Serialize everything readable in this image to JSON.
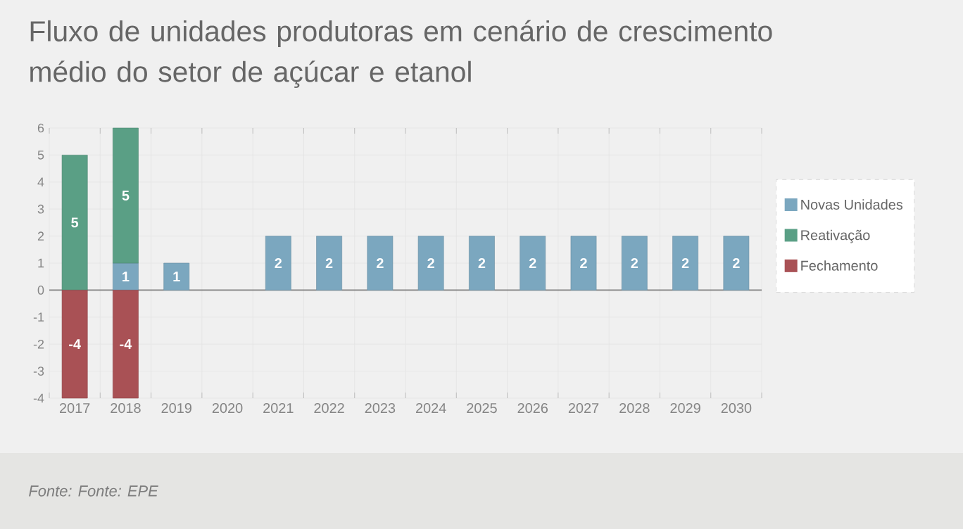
{
  "chart_data": {
    "type": "bar",
    "title": "Fluxo de unidades produtoras em cenário de crescimento médio do setor de açúcar e etanol",
    "categories": [
      "2017",
      "2018",
      "2019",
      "2020",
      "2021",
      "2022",
      "2023",
      "2024",
      "2025",
      "2026",
      "2027",
      "2028",
      "2029",
      "2030"
    ],
    "series": [
      {
        "name": "Novas Unidades",
        "color": "#7ba7bf",
        "values": [
          null,
          1,
          1,
          null,
          2,
          2,
          2,
          2,
          2,
          2,
          2,
          2,
          2,
          2
        ]
      },
      {
        "name": "Reativação",
        "color": "#5a9f85",
        "values": [
          5,
          5,
          null,
          null,
          null,
          null,
          null,
          null,
          null,
          null,
          null,
          null,
          null,
          null
        ]
      },
      {
        "name": "Fechamento",
        "color": "#a95155",
        "values": [
          -4,
          -4,
          null,
          null,
          null,
          null,
          null,
          null,
          null,
          null,
          null,
          null,
          null,
          null
        ]
      }
    ],
    "stacked": true,
    "data_labels": true,
    "grid": true,
    "legend": "right",
    "ylim": [
      -4,
      6
    ],
    "yticks": [
      -4,
      -3,
      -2,
      -1,
      0,
      1,
      2,
      3,
      4,
      5,
      6
    ],
    "annotations": [
      "Fonte:  Fonte: EPE"
    ]
  }
}
